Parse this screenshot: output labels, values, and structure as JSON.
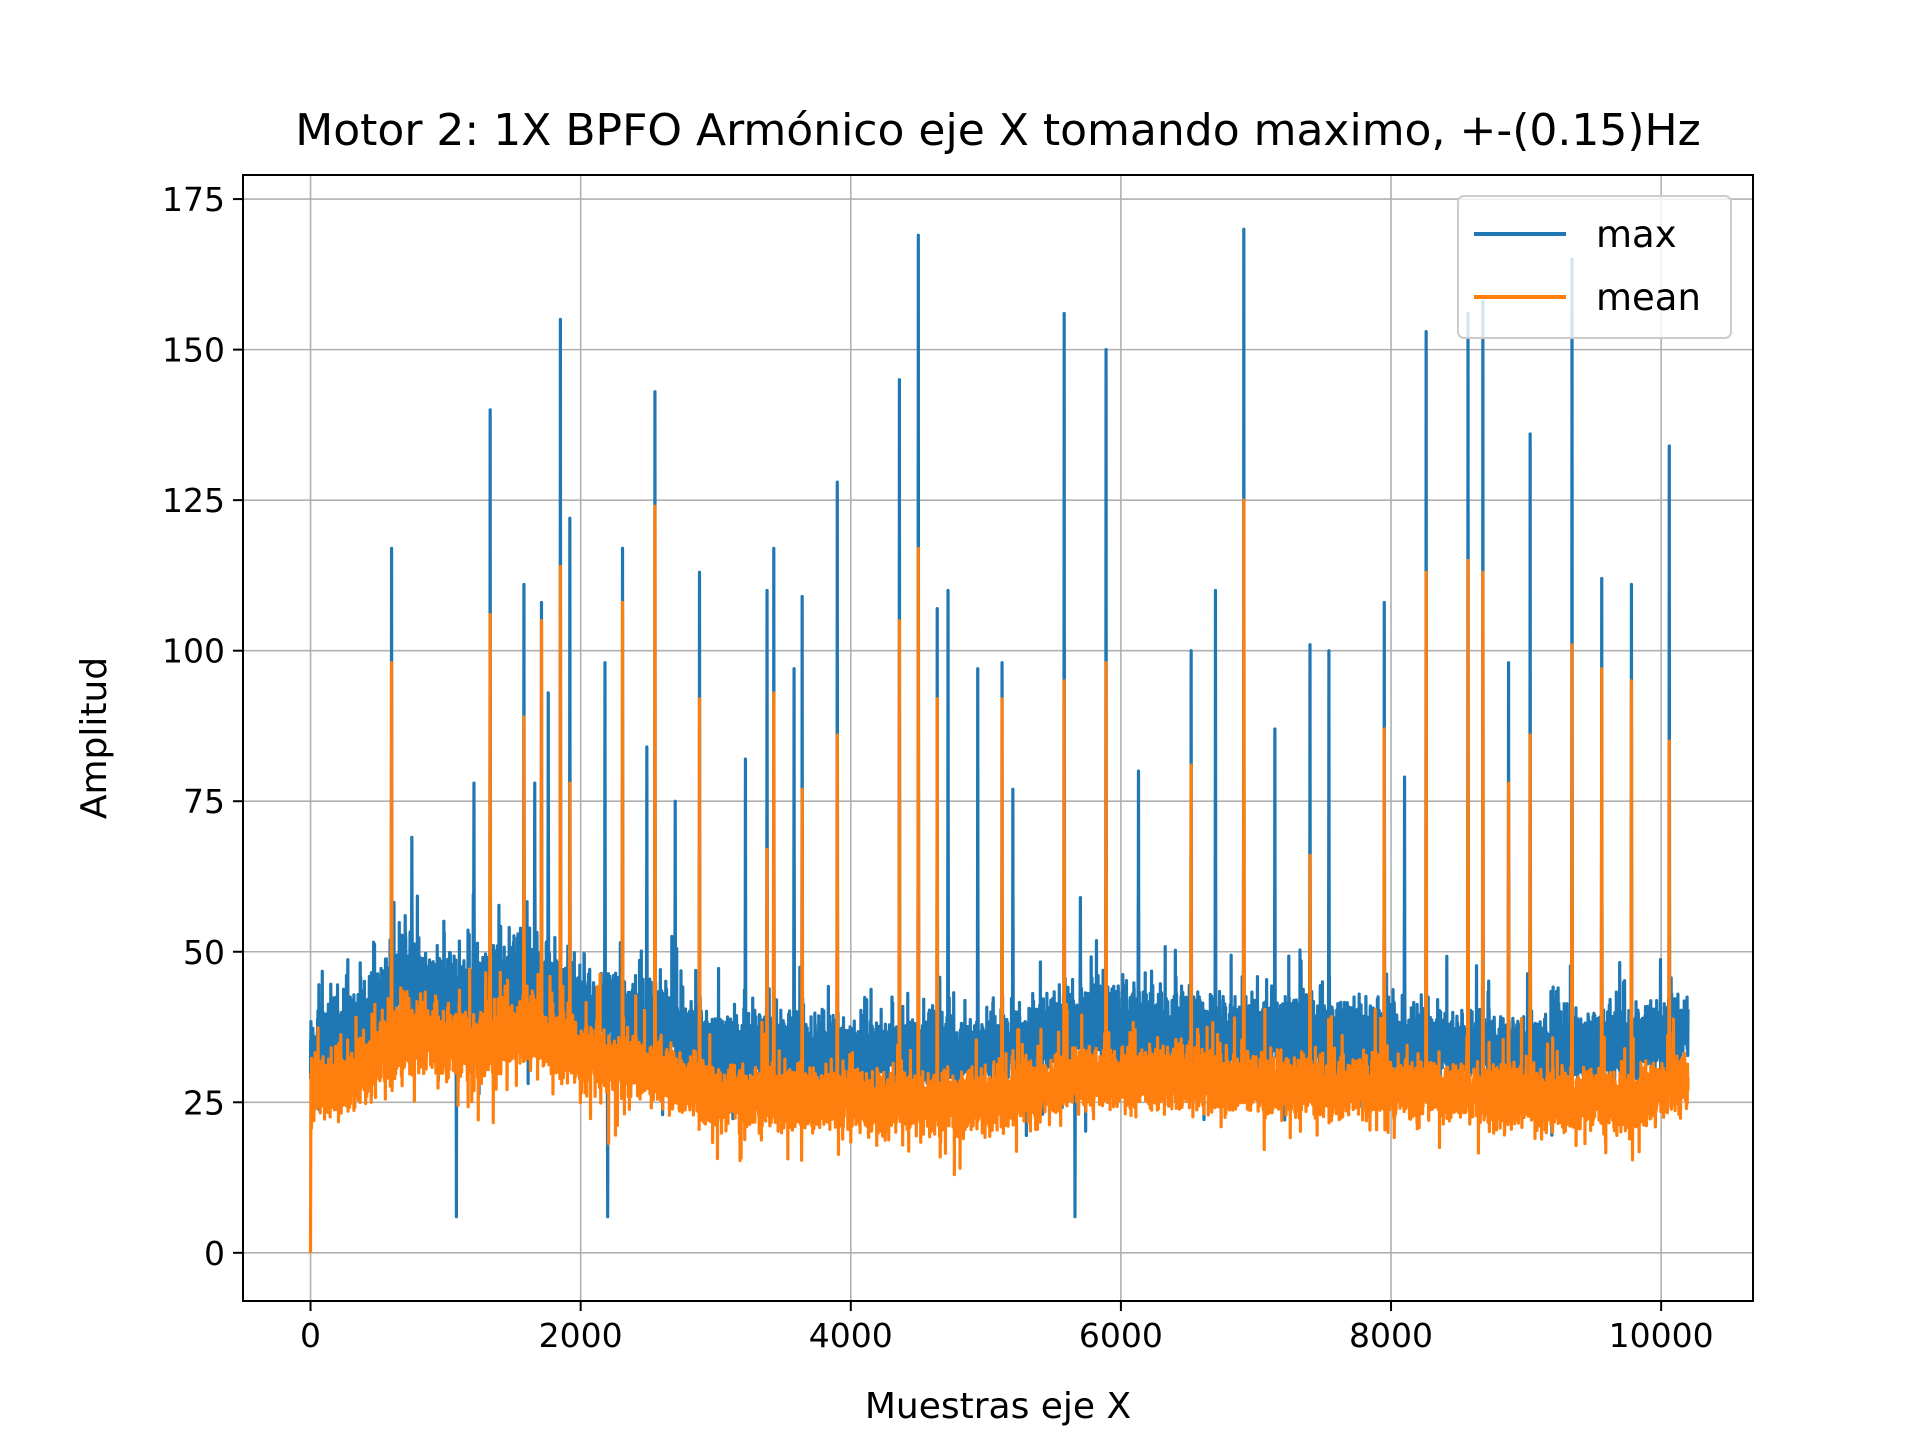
{
  "chart_data": {
    "type": "line",
    "title": "Motor 2: 1X BPFO Armónico eje X tomando maximo, +-(0.15)Hz",
    "xlabel": "Muestras eje X",
    "ylabel": "Amplitud",
    "xlim": [
      -500,
      10680
    ],
    "ylim": [
      -8,
      179
    ],
    "x_ticks": [
      0,
      2000,
      4000,
      6000,
      8000,
      10000
    ],
    "y_ticks": [
      0,
      25,
      50,
      75,
      100,
      125,
      150,
      175
    ],
    "grid": true,
    "legend_position": "top-right",
    "n_samples": 10200,
    "series": [
      {
        "name": "max",
        "color": "#1f77b4",
        "baseline_segments": [
          [
            0,
            33,
            8
          ],
          [
            300,
            37,
            8
          ],
          [
            700,
            45,
            9
          ],
          [
            1200,
            42,
            9
          ],
          [
            1600,
            46,
            9
          ],
          [
            2000,
            40,
            8
          ],
          [
            2600,
            38,
            8
          ],
          [
            3000,
            34,
            7
          ],
          [
            4000,
            33,
            7
          ],
          [
            5000,
            33,
            7
          ],
          [
            5700,
            38,
            8
          ],
          [
            6300,
            37,
            8
          ],
          [
            7000,
            36,
            8
          ],
          [
            8000,
            35,
            7
          ],
          [
            9000,
            33,
            7
          ],
          [
            9800,
            35,
            7
          ],
          [
            10200,
            37,
            7
          ]
        ],
        "spikes": [
          [
            600,
            117
          ],
          [
            750,
            69
          ],
          [
            1080,
            6
          ],
          [
            1210,
            78
          ],
          [
            1330,
            140
          ],
          [
            1580,
            111
          ],
          [
            1660,
            78
          ],
          [
            1710,
            108
          ],
          [
            1760,
            93
          ],
          [
            1850,
            155
          ],
          [
            1920,
            122
          ],
          [
            2200,
            6
          ],
          [
            2180,
            98
          ],
          [
            2310,
            117
          ],
          [
            2490,
            84
          ],
          [
            2550,
            143
          ],
          [
            2700,
            75
          ],
          [
            2880,
            113
          ],
          [
            3220,
            82
          ],
          [
            3380,
            110
          ],
          [
            3430,
            117
          ],
          [
            3580,
            97
          ],
          [
            3640,
            109
          ],
          [
            3900,
            128
          ],
          [
            4360,
            145
          ],
          [
            4500,
            169
          ],
          [
            4640,
            107
          ],
          [
            4720,
            110
          ],
          [
            4940,
            97
          ],
          [
            5120,
            98
          ],
          [
            5200,
            77
          ],
          [
            5580,
            156
          ],
          [
            5660,
            6
          ],
          [
            5700,
            59
          ],
          [
            5890,
            150
          ],
          [
            6130,
            80
          ],
          [
            6520,
            100
          ],
          [
            6700,
            110
          ],
          [
            6910,
            170
          ],
          [
            7140,
            87
          ],
          [
            7400,
            101
          ],
          [
            7540,
            100
          ],
          [
            7950,
            108
          ],
          [
            8100,
            79
          ],
          [
            8260,
            153
          ],
          [
            8570,
            156
          ],
          [
            8680,
            158
          ],
          [
            8870,
            98
          ],
          [
            9030,
            136
          ],
          [
            9340,
            165
          ],
          [
            9560,
            112
          ],
          [
            9780,
            111
          ],
          [
            10060,
            134
          ]
        ]
      },
      {
        "name": "mean",
        "color": "#ff7f0e",
        "baseline_segments": [
          [
            0,
            27,
            6
          ],
          [
            300,
            29,
            6
          ],
          [
            700,
            36,
            7
          ],
          [
            1200,
            34,
            7
          ],
          [
            1600,
            37,
            7
          ],
          [
            2000,
            32,
            6
          ],
          [
            2600,
            30,
            6
          ],
          [
            3000,
            26,
            6
          ],
          [
            4000,
            25,
            6
          ],
          [
            5000,
            25,
            6
          ],
          [
            5700,
            29,
            6
          ],
          [
            6300,
            29,
            6
          ],
          [
            7000,
            28,
            6
          ],
          [
            8000,
            27,
            6
          ],
          [
            9000,
            26,
            6
          ],
          [
            9800,
            25,
            6
          ],
          [
            10200,
            29,
            6
          ]
        ],
        "spikes": [
          [
            0,
            0
          ],
          [
            600,
            98
          ],
          [
            1330,
            106
          ],
          [
            1580,
            89
          ],
          [
            1710,
            105
          ],
          [
            1850,
            114
          ],
          [
            1920,
            78
          ],
          [
            2310,
            108
          ],
          [
            2550,
            124
          ],
          [
            2880,
            92
          ],
          [
            3380,
            67
          ],
          [
            3430,
            93
          ],
          [
            3640,
            77
          ],
          [
            3900,
            86
          ],
          [
            4360,
            105
          ],
          [
            4500,
            117
          ],
          [
            4640,
            92
          ],
          [
            5120,
            92
          ],
          [
            5580,
            95
          ],
          [
            5890,
            98
          ],
          [
            6520,
            81
          ],
          [
            6910,
            125
          ],
          [
            7400,
            66
          ],
          [
            7950,
            87
          ],
          [
            8260,
            113
          ],
          [
            8570,
            115
          ],
          [
            8680,
            113
          ],
          [
            8870,
            78
          ],
          [
            9030,
            86
          ],
          [
            9340,
            101
          ],
          [
            9560,
            97
          ],
          [
            9780,
            95
          ],
          [
            10060,
            85
          ]
        ]
      }
    ]
  }
}
